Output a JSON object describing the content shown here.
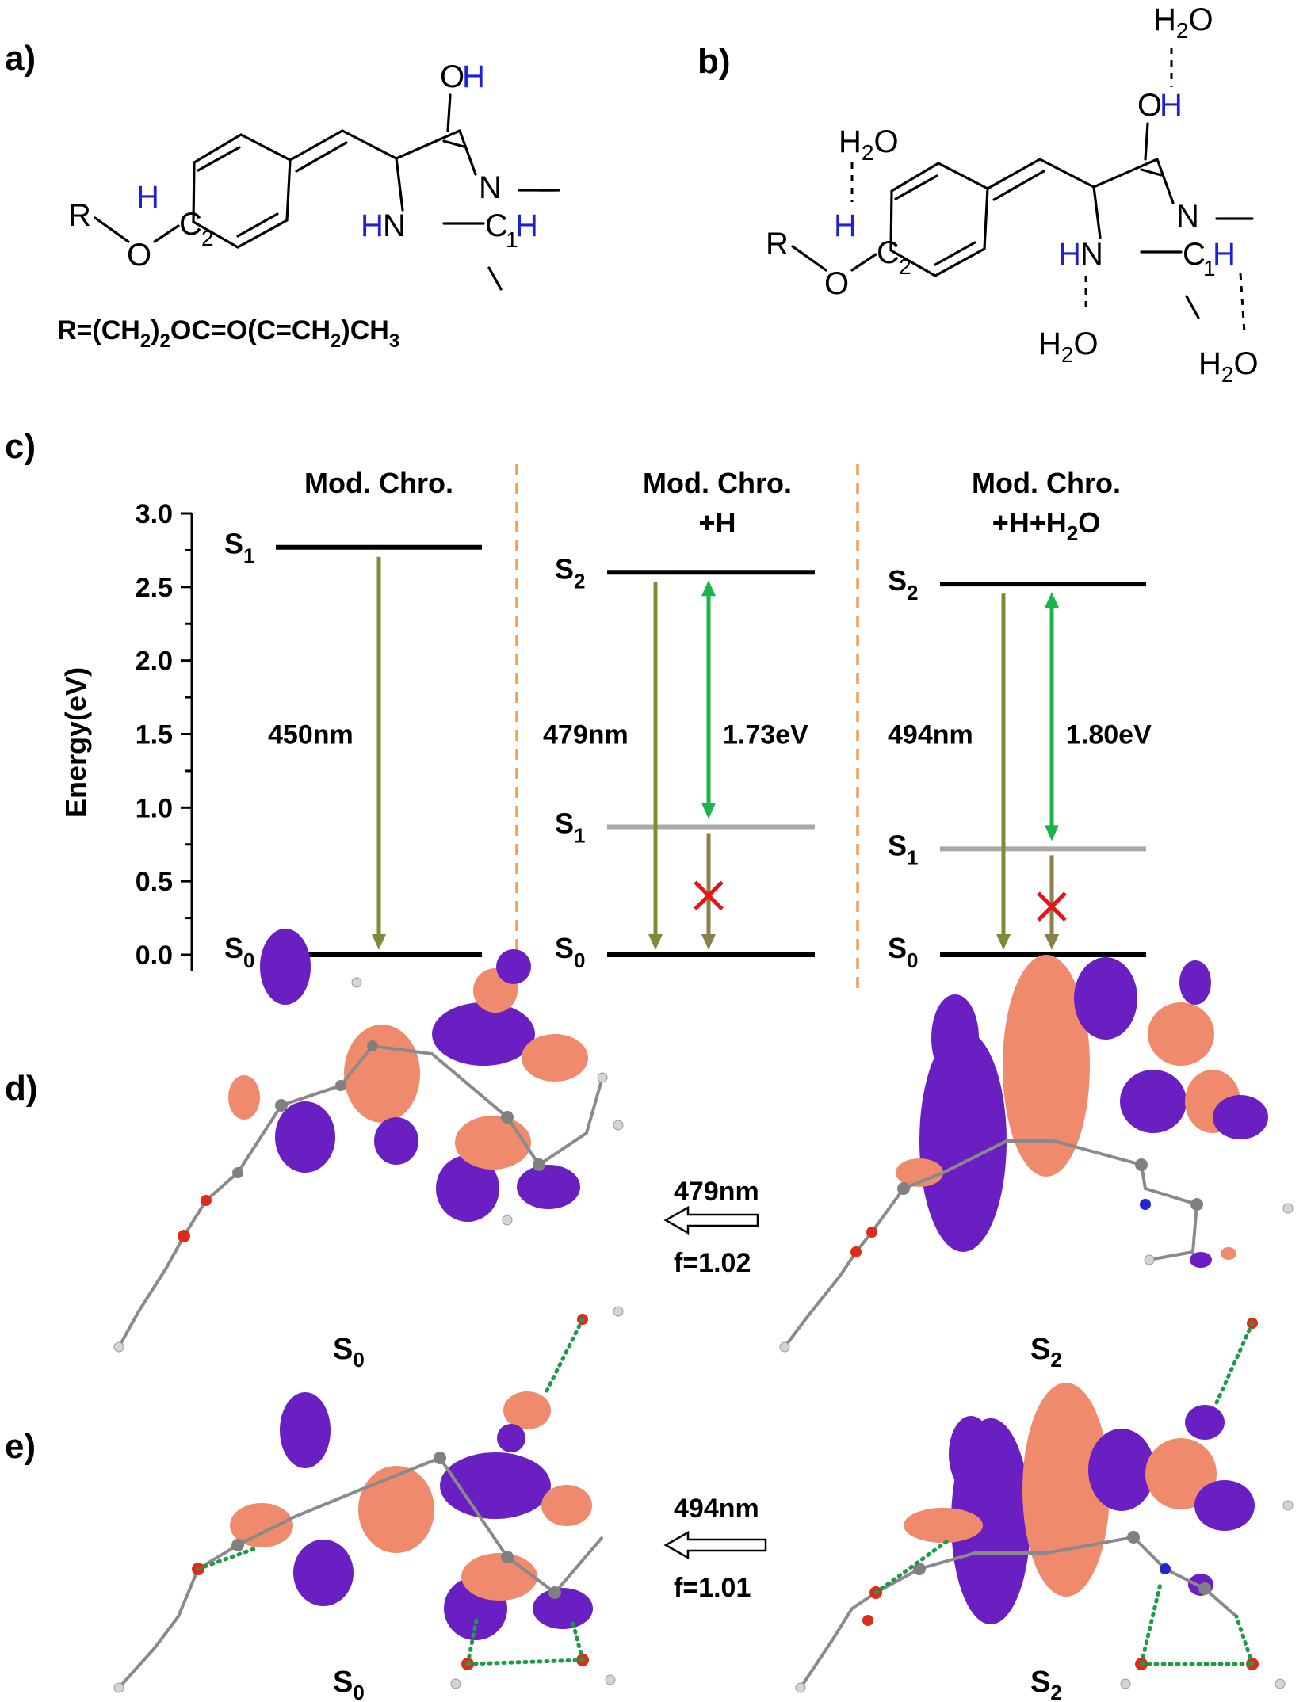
{
  "panels": {
    "a": "a)",
    "b": "b)",
    "c": "c)",
    "d": "d)",
    "e": "e)"
  },
  "structure_a": {
    "OH_O": "O",
    "OH_H": "H",
    "N_right": "N",
    "HN_H": "H",
    "HN_N": "N",
    "C1": "C",
    "C1_sub": "1",
    "C1_H": "H",
    "H_left": "H",
    "C2": "C",
    "C2_sub": "2",
    "R": "R",
    "O_ether": "O",
    "formula": "R=(CH",
    "formula_sub1": "2",
    "formula_mid": ")",
    "formula_sub2": "2",
    "formula_rest": "OC=O(C=CH",
    "formula_sub3": "2",
    "formula_end": ")CH",
    "formula_sub4": "3"
  },
  "structure_b": {
    "water": "H",
    "water_sub": "2",
    "water_O": "O"
  },
  "chart_data": {
    "type": "energy-level diagram",
    "ylabel": "Energy(eV)",
    "ylim": [
      0.0,
      3.0
    ],
    "yticks": [
      "0.0",
      "0.5",
      "1.0",
      "1.5",
      "2.0",
      "2.5",
      "3.0"
    ],
    "columns": [
      {
        "title_lines": [
          "Mod. Chro."
        ],
        "levels": [
          {
            "label": "S",
            "sub": "1",
            "energy": 2.77,
            "color": "#000000"
          },
          {
            "label": "S",
            "sub": "0",
            "energy": 0.0,
            "color": "#000000"
          }
        ],
        "emission_label": "450nm",
        "gap_label": "",
        "forbidden": false
      },
      {
        "title_lines": [
          "Mod. Chro.",
          "+H"
        ],
        "levels": [
          {
            "label": "S",
            "sub": "2",
            "energy": 2.6,
            "color": "#000000"
          },
          {
            "label": "S",
            "sub": "1",
            "energy": 0.87,
            "color": "#a8a8a8"
          },
          {
            "label": "S",
            "sub": "0",
            "energy": 0.0,
            "color": "#000000"
          }
        ],
        "emission_label": "479nm",
        "gap_label": "1.73eV",
        "forbidden": true
      },
      {
        "title_lines": [
          "Mod. Chro.",
          "+H+H2O"
        ],
        "levels": [
          {
            "label": "S",
            "sub": "2",
            "energy": 2.52,
            "color": "#000000"
          },
          {
            "label": "S",
            "sub": "1",
            "energy": 0.72,
            "color": "#a8a8a8"
          },
          {
            "label": "S",
            "sub": "0",
            "energy": 0.0,
            "color": "#000000"
          }
        ],
        "emission_label": "494nm",
        "gap_label": "1.80eV",
        "forbidden": true
      }
    ]
  },
  "orbitals": {
    "d": {
      "wavelength": "479nm",
      "f": "f=1.02",
      "left": "S",
      "left_sub": "0",
      "right": "S",
      "right_sub": "2"
    },
    "e": {
      "wavelength": "494nm",
      "f": "f=1.01",
      "left": "S",
      "left_sub": "0",
      "right": "S",
      "right_sub": "2"
    }
  },
  "colors": {
    "positive_lobe": "#f08a6c",
    "negative_lobe": "#6a1fc2",
    "emission_arrow": "#7b8c3a",
    "gap_arrow": "#1db34b",
    "forbidden_mark": "#ee1111",
    "divider": "#f0a050"
  }
}
